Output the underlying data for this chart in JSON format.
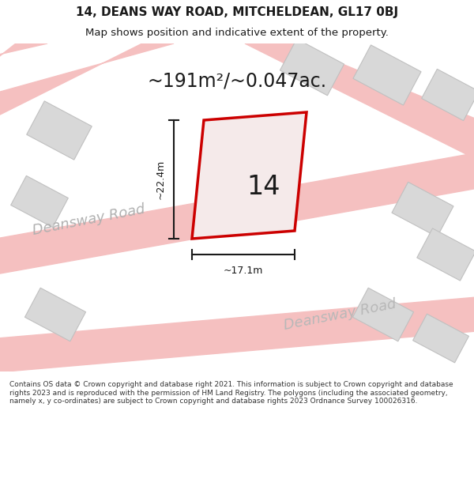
{
  "title": "14, DEANS WAY ROAD, MITCHELDEAN, GL17 0BJ",
  "subtitle": "Map shows position and indicative extent of the property.",
  "background_color": "#ffffff",
  "road_color": "#f5c0c0",
  "building_fill": "#d8d8d8",
  "building_edge": "#c0c0c0",
  "plot_edge": "#cc0000",
  "plot_fill": "#f5eaea",
  "dimension_color": "#1a1a1a",
  "text_color": "#1a1a1a",
  "area_text": "~191m²/~0.047ac.",
  "number_label": "14",
  "dim_width": "~17.1m",
  "dim_height": "~22.4m",
  "road_label_1": "Deansway Road",
  "road_label_2": "Deansway Road",
  "footer_text": "Contains OS data © Crown copyright and database right 2021. This information is subject to Crown copyright and database rights 2023 and is reproduced with the permission of HM Land Registry. The polygons (including the associated geometry, namely x, y co-ordinates) are subject to Crown copyright and database rights 2023 Ordnance Survey 100026316."
}
